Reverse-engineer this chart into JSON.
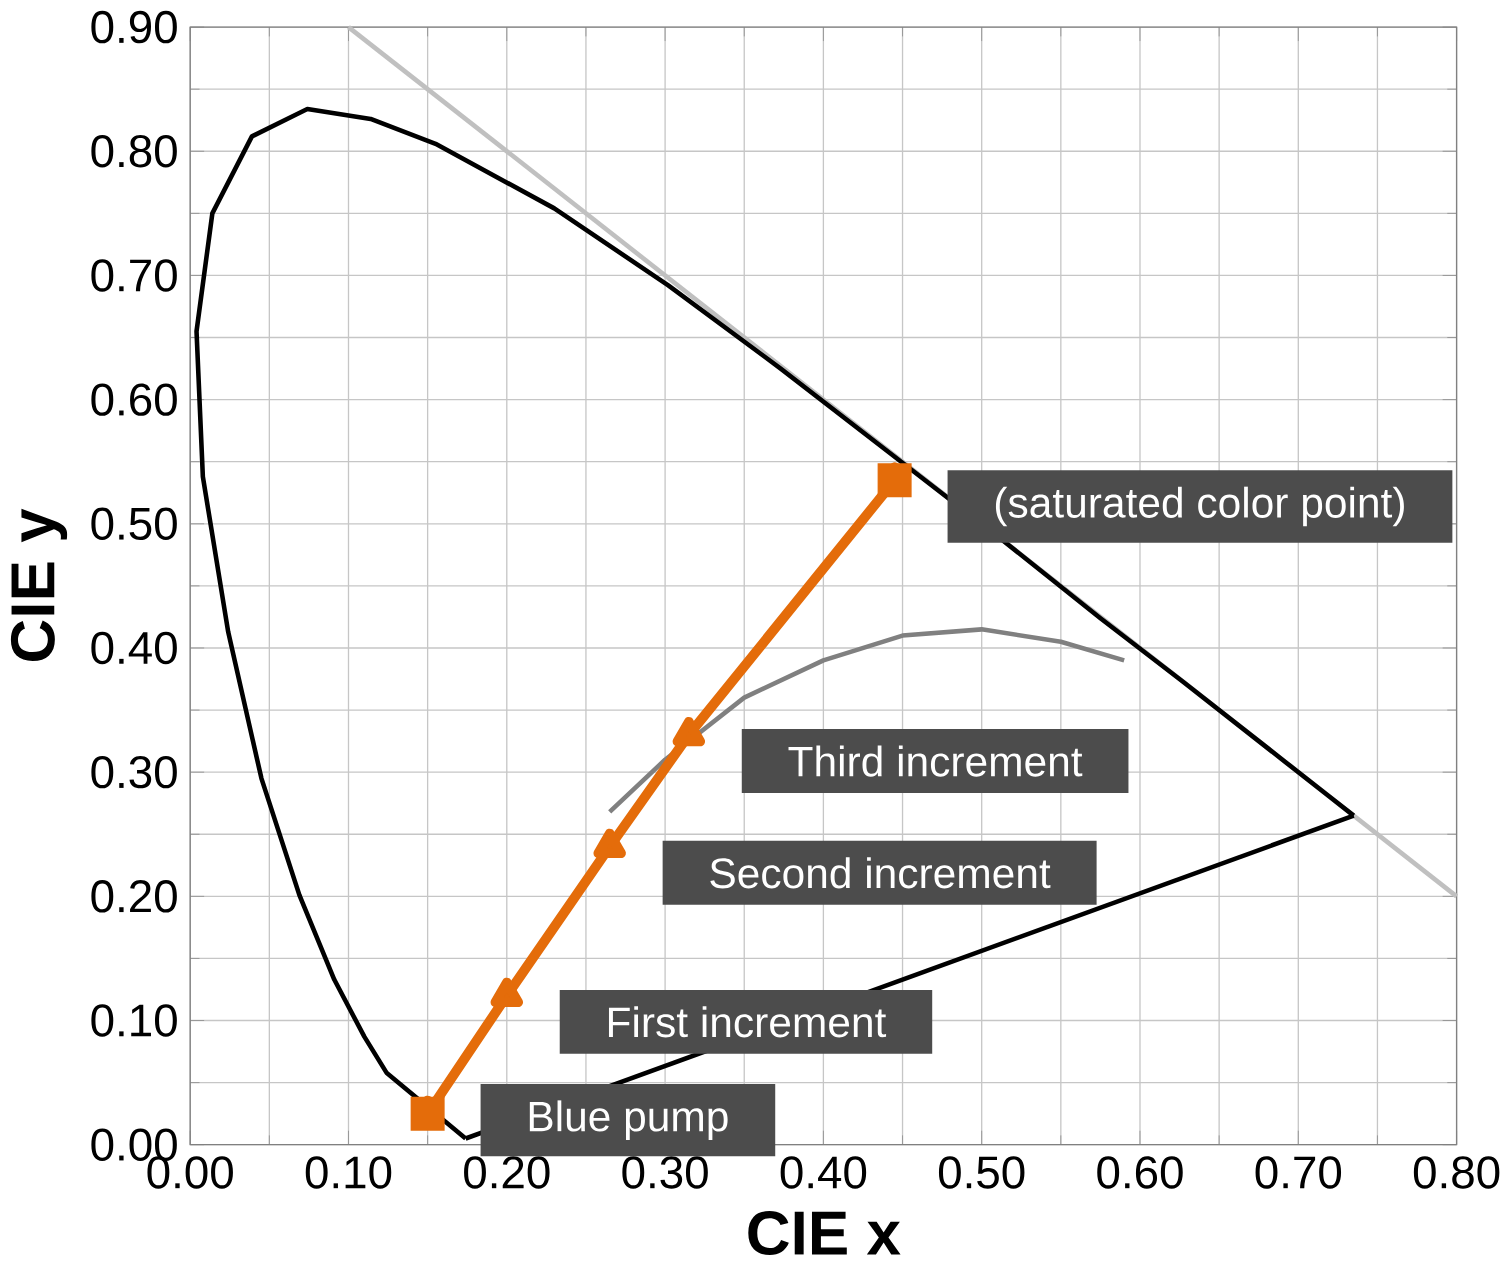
{
  "chart_data": {
    "type": "line",
    "xlabel": "CIE x",
    "ylabel": "CIE y",
    "xlim": [
      0,
      0.8
    ],
    "ylim": [
      0,
      0.9
    ],
    "xticks": [
      {
        "value": 0,
        "label": "0.00"
      },
      {
        "value": 0.1,
        "label": "0.10"
      },
      {
        "value": 0.2,
        "label": "0.20"
      },
      {
        "value": 0.3,
        "label": "0.30"
      },
      {
        "value": 0.4,
        "label": "0.40"
      },
      {
        "value": 0.5,
        "label": "0.50"
      },
      {
        "value": 0.6,
        "label": "0.60"
      },
      {
        "value": 0.7,
        "label": "0.70"
      },
      {
        "value": 0.8,
        "label": "0.80"
      }
    ],
    "yticks": [
      {
        "value": 0,
        "label": "0.00"
      },
      {
        "value": 0.1,
        "label": "0.10"
      },
      {
        "value": 0.2,
        "label": "0.20"
      },
      {
        "value": 0.3,
        "label": "0.30"
      },
      {
        "value": 0.4,
        "label": "0.40"
      },
      {
        "value": 0.5,
        "label": "0.50"
      },
      {
        "value": 0.6,
        "label": "0.60"
      },
      {
        "value": 0.7,
        "label": "0.70"
      },
      {
        "value": 0.8,
        "label": "0.80"
      },
      {
        "value": 0.9,
        "label": "0.90"
      }
    ],
    "grid": true,
    "series": [
      {
        "color": "#c0c0c0",
        "marker": "none",
        "x": [
          0.1,
          0.8
        ],
        "values": [
          0.9,
          0.2
        ]
      },
      {
        "color": "#000000",
        "marker": "none",
        "x": [
          0.174,
          0.144,
          0.124,
          0.11,
          0.091,
          0.069,
          0.045,
          0.024,
          0.008,
          0.004,
          0.014,
          0.039,
          0.074,
          0.114,
          0.155,
          0.23,
          0.302,
          0.373,
          0.444,
          0.513,
          0.575,
          0.627,
          0.692,
          0.719,
          0.735
        ],
        "values": [
          0.005,
          null,
          0.058,
          0.087,
          0.133,
          0.201,
          0.295,
          0.413,
          0.538,
          0.655,
          0.75,
          0.812,
          0.834,
          0.826,
          0.806,
          0.754,
          0.692,
          0.625,
          0.555,
          0.487,
          0.424,
          0.373,
          0.308,
          0.281,
          0.265
        ]
      },
      {
        "color": "#000000",
        "marker": "none",
        "x": [
          0.174,
          0.735
        ],
        "values": [
          0.005,
          0.265
        ]
      },
      {
        "color": "#808080",
        "marker": "none",
        "x": [
          0.265,
          0.3,
          0.35,
          0.4,
          0.45,
          0.5,
          0.55,
          0.59
        ],
        "values": [
          0.268,
          0.31,
          0.36,
          0.39,
          0.41,
          0.415,
          0.405,
          0.39
        ]
      },
      {
        "color": "#e46c0a",
        "marker": "triangle",
        "x": [
          0.15,
          0.2,
          0.265,
          0.315,
          0.445
        ],
        "values": [
          0.025,
          0.12,
          0.24,
          0.33,
          0.535
        ]
      },
      {
        "type": "scatter",
        "color": "#e46c0a",
        "marker": "square",
        "x": [
          0.15,
          0.445
        ],
        "values": [
          0.025,
          0.535
        ]
      }
    ],
    "annotations": [
      {
        "text": "Blue pump",
        "x": 0.15,
        "y": 0.025
      },
      {
        "text": "First increment",
        "x": 0.2,
        "y": 0.12
      },
      {
        "text": "Second increment",
        "x": 0.265,
        "y": 0.24
      },
      {
        "text": "Third increment",
        "x": 0.315,
        "y": 0.33
      },
      {
        "text": "(saturated color point)",
        "x": 0.445,
        "y": 0.535
      }
    ]
  }
}
